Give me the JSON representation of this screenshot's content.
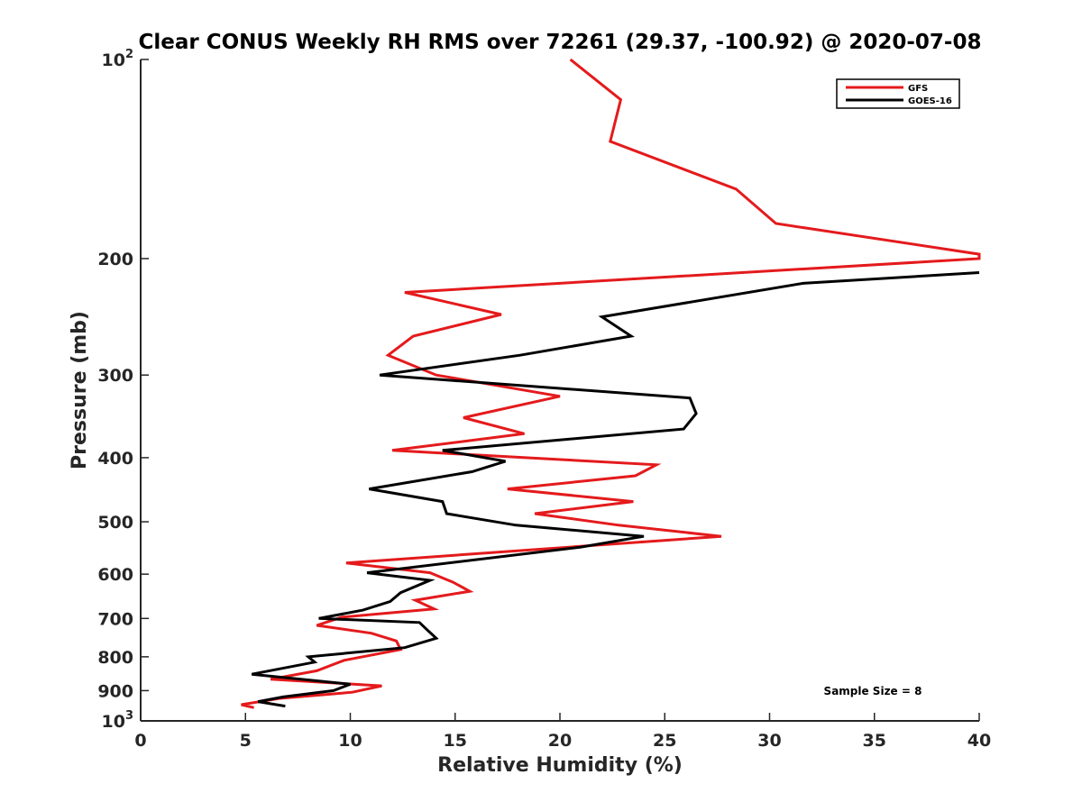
{
  "chart_data": {
    "type": "line",
    "title": "Clear CONUS Weekly RH RMS over 72261 (29.37, -100.92) @ 2020-07-08",
    "xlabel": "Relative Humidity (%)",
    "ylabel": "Pressure (mb)",
    "xlim": [
      0,
      40
    ],
    "ylim": [
      100,
      1000
    ],
    "y_scale": "log",
    "y_reversed": true,
    "x_ticks": [
      0,
      5,
      10,
      15,
      20,
      25,
      30,
      35,
      40
    ],
    "x_tick_labels": [
      "0",
      "5",
      "10",
      "15",
      "20",
      "25",
      "30",
      "35",
      "40"
    ],
    "y_ticks": [
      100,
      200,
      300,
      400,
      500,
      600,
      700,
      800,
      900,
      1000
    ],
    "y_tick_labels": [
      {
        "base": "10",
        "exp": "2"
      },
      {
        "base": "200",
        "exp": ""
      },
      {
        "base": "300",
        "exp": ""
      },
      {
        "base": "400",
        "exp": ""
      },
      {
        "base": "500",
        "exp": ""
      },
      {
        "base": "600",
        "exp": ""
      },
      {
        "base": "700",
        "exp": ""
      },
      {
        "base": "800",
        "exp": ""
      },
      {
        "base": "900",
        "exp": ""
      },
      {
        "base": "10",
        "exp": "3"
      }
    ],
    "grid": false,
    "legend_position": "top-right",
    "annotation": "Sample Size = 8",
    "series": [
      {
        "name": "GFS",
        "color": "#e41a1c",
        "points": [
          [
            20.5,
            100
          ],
          [
            22.9,
            115
          ],
          [
            22.4,
            133
          ],
          [
            28.4,
            157
          ],
          [
            30.3,
            177
          ],
          [
            40.0,
            197
          ],
          [
            40.0,
            200
          ],
          [
            12.6,
            225
          ],
          [
            17.2,
            243
          ],
          [
            13.0,
            262
          ],
          [
            11.8,
            280
          ],
          [
            14.1,
            300
          ],
          [
            20.0,
            323
          ],
          [
            15.4,
            348
          ],
          [
            18.3,
            368
          ],
          [
            12.0,
            390
          ],
          [
            24.6,
            410
          ],
          [
            23.6,
            426
          ],
          [
            17.5,
            446
          ],
          [
            23.5,
            466
          ],
          [
            18.8,
            486
          ],
          [
            22.8,
            506
          ],
          [
            27.7,
            526
          ],
          [
            9.8,
            577
          ],
          [
            13.8,
            597
          ],
          [
            14.9,
            617
          ],
          [
            15.7,
            637
          ],
          [
            13.1,
            657
          ],
          [
            14.0,
            677
          ],
          [
            9.6,
            697
          ],
          [
            8.4,
            717
          ],
          [
            11.0,
            737
          ],
          [
            12.2,
            757
          ],
          [
            12.4,
            780
          ],
          [
            9.7,
            810
          ],
          [
            8.4,
            840
          ],
          [
            6.2,
            865
          ],
          [
            11.5,
            885
          ],
          [
            10.1,
            905
          ],
          [
            6.6,
            925
          ],
          [
            4.8,
            945
          ],
          [
            5.4,
            955
          ]
        ]
      },
      {
        "name": "GOES-16",
        "color": "#000000",
        "points": [
          [
            40.0,
            210
          ],
          [
            31.6,
            218
          ],
          [
            22.0,
            245
          ],
          [
            23.4,
            262
          ],
          [
            18.1,
            280
          ],
          [
            11.4,
            300
          ],
          [
            26.2,
            325
          ],
          [
            26.5,
            343
          ],
          [
            25.9,
            362
          ],
          [
            14.4,
            390
          ],
          [
            17.4,
            405
          ],
          [
            15.8,
            420
          ],
          [
            10.9,
            446
          ],
          [
            14.4,
            466
          ],
          [
            14.6,
            486
          ],
          [
            17.9,
            506
          ],
          [
            24.0,
            526
          ],
          [
            21.0,
            546
          ],
          [
            10.8,
            597
          ],
          [
            13.8,
            613
          ],
          [
            12.4,
            640
          ],
          [
            11.9,
            660
          ],
          [
            10.6,
            680
          ],
          [
            8.5,
            700
          ],
          [
            13.3,
            710
          ],
          [
            13.7,
            730
          ],
          [
            14.1,
            750
          ],
          [
            12.6,
            775
          ],
          [
            8.0,
            800
          ],
          [
            8.3,
            815
          ],
          [
            5.3,
            850
          ],
          [
            10.0,
            880
          ],
          [
            9.2,
            900
          ],
          [
            6.8,
            920
          ],
          [
            5.6,
            935
          ],
          [
            6.9,
            950
          ]
        ]
      }
    ]
  }
}
